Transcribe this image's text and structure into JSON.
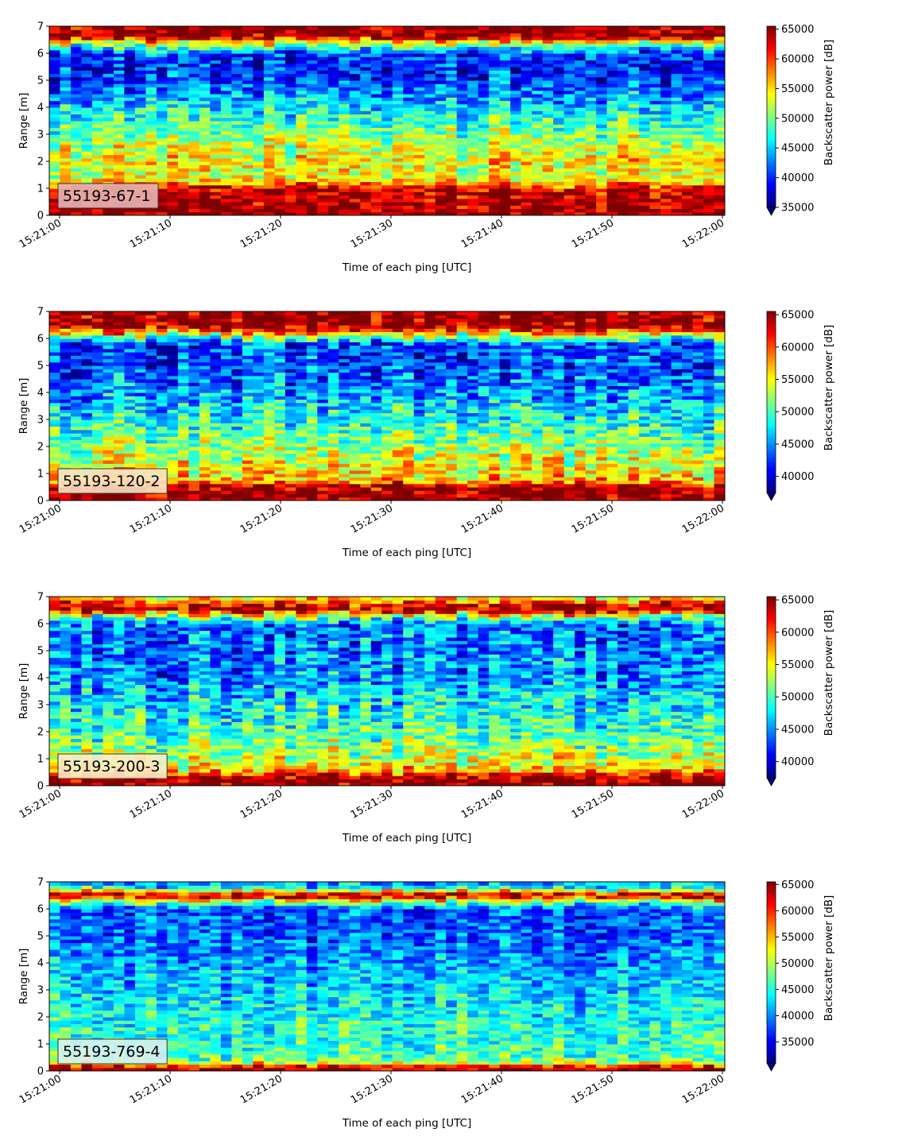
{
  "figure": {
    "x_tick_labels": [
      "15:21:00",
      "15:21:10",
      "15:21:20",
      "15:21:30",
      "15:21:40",
      "15:21:50",
      "15:22:00"
    ],
    "y_tick_labels": [
      "0",
      "1",
      "2",
      "3",
      "4",
      "5",
      "6",
      "7"
    ],
    "xlabel": "Time of each ping [UTC]",
    "ylabel": "Range [m]",
    "colorbar_label": "Backscatter power [dB]",
    "colormap": "jet",
    "colormap_stops": [
      "#00007f",
      "#0000ff",
      "#007fff",
      "#00ffff",
      "#7fff7f",
      "#ffff00",
      "#ff7f00",
      "#ff0000",
      "#7f0000"
    ]
  },
  "chart_data": [
    {
      "type": "heatmap",
      "label": "55193-67-1",
      "x_range": [
        "15:21:00",
        "15:22:00"
      ],
      "ylim": [
        0,
        7
      ],
      "color_range": [
        35000,
        65500
      ],
      "colorbar_ticks": [
        "35000",
        "40000",
        "45000",
        "50000",
        "55000",
        "60000",
        "65000"
      ],
      "label_box_color": "#e8b4b4",
      "range_profile": [
        {
          "range": 0.2,
          "power": 65000
        },
        {
          "range": 1.0,
          "power": 63000
        },
        {
          "range": 1.25,
          "power": 55000
        },
        {
          "range": 1.5,
          "power": 53000
        },
        {
          "range": 2.0,
          "power": 54500
        },
        {
          "range": 2.5,
          "power": 52500
        },
        {
          "range": 3.0,
          "power": 50500
        },
        {
          "range": 3.5,
          "power": 48000
        },
        {
          "range": 4.0,
          "power": 45500
        },
        {
          "range": 4.5,
          "power": 43000
        },
        {
          "range": 5.0,
          "power": 40500
        },
        {
          "range": 5.5,
          "power": 39500
        },
        {
          "range": 6.0,
          "power": 40500
        },
        {
          "range": 6.3,
          "power": 50000
        },
        {
          "range": 6.5,
          "power": 57000
        },
        {
          "range": 6.6,
          "power": 65000
        },
        {
          "range": 7.0,
          "power": 65000
        }
      ]
    },
    {
      "type": "heatmap",
      "label": "55193-120-2",
      "x_range": [
        "15:21:00",
        "15:22:00"
      ],
      "ylim": [
        0,
        7
      ],
      "color_range": [
        37500,
        65500
      ],
      "colorbar_ticks": [
        "40000",
        "45000",
        "50000",
        "55000",
        "60000",
        "65000"
      ],
      "label_box_color": "#f7e2c4",
      "range_profile": [
        {
          "range": 0.2,
          "power": 65000
        },
        {
          "range": 0.55,
          "power": 64000
        },
        {
          "range": 0.7,
          "power": 58000
        },
        {
          "range": 1.0,
          "power": 55500
        },
        {
          "range": 1.5,
          "power": 54000
        },
        {
          "range": 2.0,
          "power": 52000
        },
        {
          "range": 3.0,
          "power": 48500
        },
        {
          "range": 4.0,
          "power": 45000
        },
        {
          "range": 5.0,
          "power": 43000
        },
        {
          "range": 5.8,
          "power": 42500
        },
        {
          "range": 6.1,
          "power": 52000
        },
        {
          "range": 6.3,
          "power": 60000
        },
        {
          "range": 6.5,
          "power": 65000
        },
        {
          "range": 7.0,
          "power": 65000
        }
      ]
    },
    {
      "type": "heatmap",
      "label": "55193-200-3",
      "x_range": [
        "15:21:00",
        "15:22:00"
      ],
      "ylim": [
        0,
        7
      ],
      "color_range": [
        37500,
        65500
      ],
      "colorbar_ticks": [
        "40000",
        "45000",
        "50000",
        "55000",
        "60000",
        "65000"
      ],
      "label_box_color": "#fbecc8",
      "range_profile": [
        {
          "range": 0.2,
          "power": 65000
        },
        {
          "range": 0.4,
          "power": 63000
        },
        {
          "range": 0.6,
          "power": 56000
        },
        {
          "range": 1.0,
          "power": 53500
        },
        {
          "range": 1.5,
          "power": 51500
        },
        {
          "range": 2.0,
          "power": 50000
        },
        {
          "range": 3.0,
          "power": 47500
        },
        {
          "range": 4.0,
          "power": 45000
        },
        {
          "range": 5.0,
          "power": 44000
        },
        {
          "range": 6.0,
          "power": 44000
        },
        {
          "range": 6.3,
          "power": 52000
        },
        {
          "range": 6.5,
          "power": 64000
        },
        {
          "range": 6.75,
          "power": 62000
        },
        {
          "range": 6.9,
          "power": 56000
        },
        {
          "range": 7.0,
          "power": 56000
        }
      ]
    },
    {
      "type": "heatmap",
      "label": "55193-769-4",
      "x_range": [
        "15:21:00",
        "15:22:00"
      ],
      "ylim": [
        0,
        7
      ],
      "color_range": [
        31000,
        65500
      ],
      "colorbar_ticks": [
        "35000",
        "40000",
        "45000",
        "50000",
        "55000",
        "60000",
        "65000"
      ],
      "label_box_color": "#d8f0ee",
      "range_profile": [
        {
          "range": 0.15,
          "power": 63000
        },
        {
          "range": 0.3,
          "power": 52000
        },
        {
          "range": 0.5,
          "power": 46000
        },
        {
          "range": 1.0,
          "power": 45500
        },
        {
          "range": 2.0,
          "power": 44500
        },
        {
          "range": 3.0,
          "power": 42500
        },
        {
          "range": 4.0,
          "power": 40500
        },
        {
          "range": 5.0,
          "power": 38500
        },
        {
          "range": 6.0,
          "power": 38000
        },
        {
          "range": 6.3,
          "power": 50000
        },
        {
          "range": 6.5,
          "power": 65000
        },
        {
          "range": 6.65,
          "power": 55000
        },
        {
          "range": 6.8,
          "power": 43000
        },
        {
          "range": 7.0,
          "power": 41000
        }
      ]
    }
  ]
}
